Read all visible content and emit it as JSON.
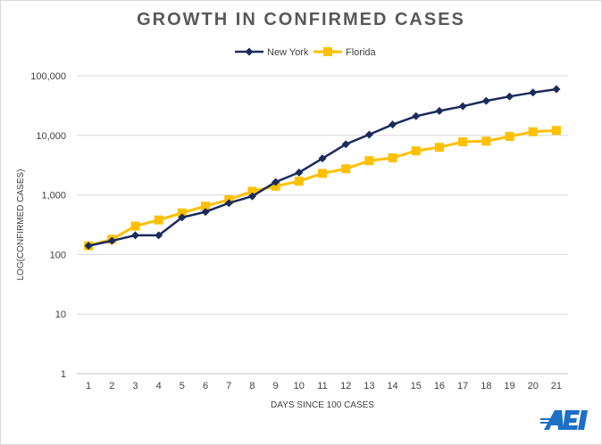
{
  "colors": {
    "new_york": "#1a2b5c",
    "florida": "#ffc000",
    "grid": "#d9d9d9",
    "logo": "#1e6fc7"
  },
  "logo_text": "AEI",
  "chart_data": {
    "type": "line",
    "title": "GROWTH  IN CONFIRMED  CASES",
    "xlabel": "DAYS SINCE 100 CASES",
    "ylabel": "LOG(CONFIRMED CASES)",
    "yscale": "log",
    "ylim": [
      1,
      100000
    ],
    "yticks": [
      1,
      10,
      100,
      1000,
      10000,
      100000
    ],
    "ytick_labels": [
      "1",
      "10",
      "100",
      "1,000",
      "10,000",
      "100,000"
    ],
    "x": [
      1,
      2,
      3,
      4,
      5,
      6,
      7,
      8,
      9,
      10,
      11,
      12,
      13,
      14,
      15,
      16,
      17,
      18,
      19,
      20,
      21
    ],
    "x_labels": [
      "1",
      "2",
      "3",
      "4",
      "5",
      "6",
      "7",
      "8",
      "9",
      "10",
      "11",
      "12",
      "13",
      "14",
      "15",
      "16",
      "17",
      "18",
      "19",
      "20",
      "21"
    ],
    "grid": "horizontal",
    "legend": "top-center",
    "series": [
      {
        "name": "New York",
        "marker": "diamond",
        "values": [
          140,
          170,
          210,
          210,
          420,
          520,
          730,
          950,
          1650,
          2380,
          4100,
          7100,
          10300,
          15200,
          21000,
          25700,
          30800,
          37900,
          44900,
          52300,
          59500
        ]
      },
      {
        "name": "Florida",
        "marker": "square",
        "values": [
          140,
          180,
          300,
          380,
          500,
          650,
          830,
          1150,
          1400,
          1700,
          2300,
          2750,
          3760,
          4200,
          5500,
          6300,
          7800,
          8000,
          9600,
          11500,
          12100
        ]
      }
    ]
  }
}
